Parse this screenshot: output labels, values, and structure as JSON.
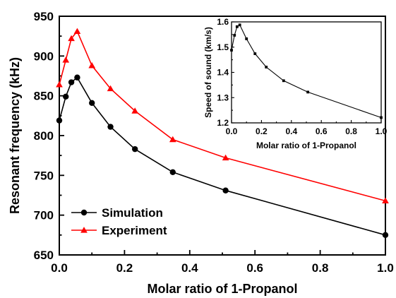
{
  "chart_data": [
    {
      "type": "line",
      "xlabel": "Molar ratio of 1-Propanol",
      "ylabel": "Resonant frequency (kHz)",
      "xlim": [
        0.0,
        1.0
      ],
      "ylim": [
        650,
        950
      ],
      "xticks": [
        "0.0",
        "0.2",
        "0.4",
        "0.6",
        "0.8",
        "1.0"
      ],
      "yticks": [
        "650",
        "700",
        "750",
        "800",
        "850",
        "900",
        "950"
      ],
      "grid": false,
      "legend_position": "bottom-left",
      "series": [
        {
          "name": "Simulation",
          "color": "#000000",
          "marker": "circle",
          "x": [
            0.0,
            0.02,
            0.037,
            0.055,
            0.1,
            0.157,
            0.232,
            0.348,
            0.51,
            1.0
          ],
          "y": [
            819,
            849,
            867,
            873,
            841,
            811,
            783,
            754,
            731,
            675
          ]
        },
        {
          "name": "Experiment",
          "color": "#ff0000",
          "marker": "triangle",
          "x": [
            0.0,
            0.02,
            0.037,
            0.055,
            0.1,
            0.157,
            0.232,
            0.348,
            0.51,
            1.0
          ],
          "y": [
            864,
            895,
            922,
            931,
            888,
            859,
            831,
            795,
            772,
            718
          ]
        }
      ]
    },
    {
      "type": "line",
      "xlabel": "Molar ratio of 1-Propanol",
      "ylabel": "Speed of sound (km/s)",
      "xlim": [
        0.0,
        1.0
      ],
      "ylim": [
        1.2,
        1.6
      ],
      "xticks": [
        "0.0",
        "0.2",
        "0.4",
        "0.6",
        "0.8",
        "1.0"
      ],
      "yticks": [
        "1.2",
        "1.3",
        "1.4",
        "1.5",
        "1.6"
      ],
      "grid": false,
      "series": [
        {
          "color": "#000000",
          "marker": "square",
          "x": [
            0.0,
            0.02,
            0.037,
            0.055,
            0.1,
            0.157,
            0.232,
            0.348,
            0.51,
            1.0
          ],
          "y": [
            1.488,
            1.547,
            1.581,
            1.588,
            1.533,
            1.474,
            1.421,
            1.367,
            1.322,
            1.221
          ]
        }
      ]
    }
  ]
}
